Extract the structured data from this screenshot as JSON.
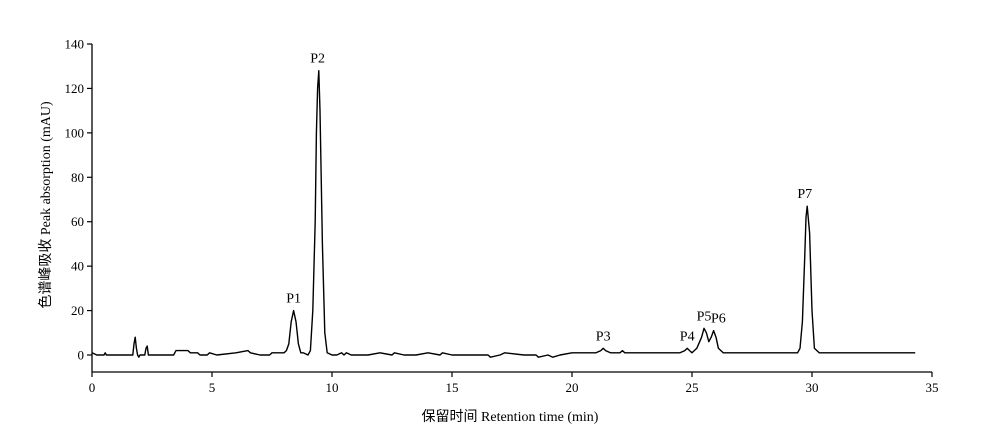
{
  "chart_data": {
    "type": "line",
    "title": "",
    "xlabel": "保留时间 Retention time (min)",
    "ylabel": "色谱峰吸收 Peak absorption (mAU)",
    "xlim": [
      0,
      35
    ],
    "ylim": [
      -8,
      140
    ],
    "x_ticks": [
      0,
      5,
      10,
      15,
      20,
      25,
      30,
      35
    ],
    "x_tick_labels": [
      "0",
      "5",
      "10",
      "15",
      "20",
      "25",
      "30",
      "35"
    ],
    "y_ticks": [
      0,
      20,
      40,
      60,
      80,
      100,
      120,
      140
    ],
    "y_tick_labels": [
      "0",
      "20",
      "40",
      "60",
      "80",
      "100",
      "120",
      "140"
    ],
    "grid": false,
    "legend": "none",
    "line_color": "#000000",
    "series": [
      {
        "x": [
          0.0,
          0.2,
          0.4,
          0.5,
          0.55,
          0.6,
          0.8,
          1.2,
          1.7,
          1.75,
          1.8,
          1.85,
          1.9,
          1.95,
          2.0,
          2.2,
          2.25,
          2.3,
          2.35,
          2.4,
          2.6,
          3.0,
          3.4,
          3.5,
          4.0,
          4.1,
          4.4,
          4.5,
          4.8,
          4.9,
          5.2,
          6.0,
          6.5,
          6.6,
          7.0,
          7.4,
          7.5,
          7.8,
          8.0,
          8.1,
          8.2,
          8.3,
          8.4,
          8.5,
          8.6,
          8.7,
          8.8,
          9.0,
          9.1,
          9.2,
          9.3,
          9.35,
          9.4,
          9.45,
          9.5,
          9.6,
          9.7,
          9.8,
          10.0,
          10.2,
          10.4,
          10.5,
          10.6,
          10.8,
          11.0,
          11.5,
          12.0,
          12.5,
          12.6,
          13.0,
          13.5,
          14.0,
          14.5,
          14.6,
          15.0,
          16.0,
          16.5,
          16.6,
          17.0,
          17.2,
          18.0,
          18.5,
          18.6,
          19.0,
          19.2,
          19.5,
          20.0,
          21.0,
          21.2,
          21.3,
          21.4,
          21.6,
          22.0,
          22.1,
          22.2,
          22.5,
          23.0,
          24.0,
          24.5,
          24.7,
          24.8,
          24.9,
          25.0,
          25.2,
          25.4,
          25.5,
          25.6,
          25.7,
          25.8,
          25.9,
          26.0,
          26.1,
          26.3,
          26.5,
          27.0,
          28.0,
          29.0,
          29.4,
          29.5,
          29.6,
          29.7,
          29.75,
          29.8,
          29.9,
          30.0,
          30.1,
          30.3,
          31.0,
          33.0,
          34.3
        ],
        "y": [
          1,
          0,
          0,
          0,
          1,
          0,
          0,
          0,
          0,
          5,
          8,
          3,
          0,
          -1,
          0,
          0,
          3,
          4,
          0,
          0,
          0,
          0,
          0,
          2,
          2,
          1,
          1,
          0,
          0,
          1,
          0,
          1,
          2,
          1,
          0,
          0,
          1,
          1,
          1,
          2,
          5,
          15,
          20,
          15,
          5,
          1,
          1,
          0,
          2,
          20,
          60,
          100,
          120,
          128,
          110,
          50,
          10,
          1,
          0,
          0,
          1,
          0,
          1,
          0,
          0,
          0,
          1,
          0,
          1,
          0,
          0,
          1,
          0,
          1,
          0,
          0,
          0,
          -1,
          0,
          1,
          0,
          0,
          -1,
          0,
          -1,
          0,
          1,
          1,
          2,
          3,
          2,
          1,
          1,
          2,
          1,
          1,
          1,
          1,
          1,
          2,
          3,
          2,
          1,
          3,
          8,
          12,
          10,
          6,
          8,
          11,
          8,
          3,
          1,
          1,
          1,
          1,
          1,
          1,
          3,
          15,
          45,
          62,
          67,
          55,
          20,
          3,
          1,
          1,
          1,
          1
        ]
      }
    ],
    "peak_labels": [
      {
        "text": "P1",
        "x": 8.4,
        "y": 20
      },
      {
        "text": "P2",
        "x": 9.4,
        "y": 128
      },
      {
        "text": "P3",
        "x": 21.3,
        "y": 3
      },
      {
        "text": "P4",
        "x": 24.8,
        "y": 3
      },
      {
        "text": "P5",
        "x": 25.5,
        "y": 12
      },
      {
        "text": "P6",
        "x": 26.1,
        "y": 11
      },
      {
        "text": "P7",
        "x": 29.7,
        "y": 67
      }
    ]
  }
}
